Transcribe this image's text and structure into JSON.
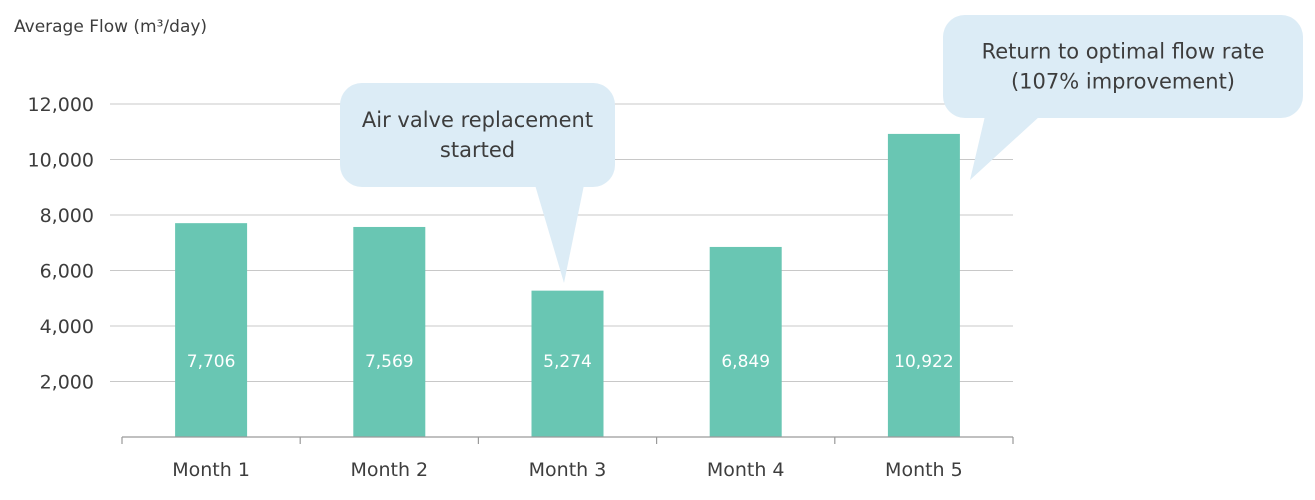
{
  "chart_data": {
    "type": "bar",
    "ylabel": "Average Flow (m³/day)",
    "categories": [
      "Month 1",
      "Month 2",
      "Month 3",
      "Month 4",
      "Month 5"
    ],
    "values": [
      7706,
      7569,
      5274,
      6849,
      10922
    ],
    "value_labels": [
      "7,706",
      "7,569",
      "5,274",
      "6,849",
      "10,922"
    ],
    "ylim": [
      0,
      12000
    ],
    "yticks": [
      2000,
      4000,
      6000,
      8000,
      10000,
      12000
    ],
    "ytick_labels": [
      "2,000",
      "4,000",
      "6,000",
      "8,000",
      "10,000",
      "12,000"
    ],
    "grid": true,
    "bar_color": "#69c6b3",
    "grid_color": "#c8c8c8",
    "callout_color": "#dcecf6",
    "annotations": [
      {
        "category_index": 2,
        "lines": [
          "Air valve replacement",
          "started"
        ]
      },
      {
        "category_index": 4,
        "lines": [
          "Return to optimal flow rate",
          "(107% improvement)"
        ]
      }
    ]
  }
}
